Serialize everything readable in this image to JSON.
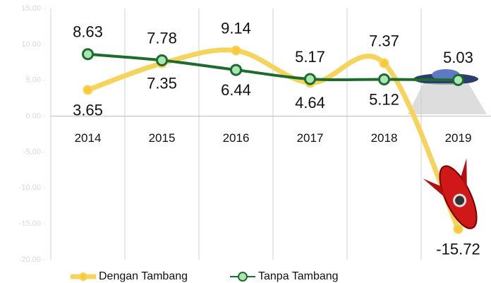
{
  "chart_data": {
    "type": "line",
    "categories": [
      "2014",
      "2015",
      "2016",
      "2017",
      "2018",
      "2019"
    ],
    "series": [
      {
        "name": "Dengan Tambang",
        "color": "#f5d45e",
        "values": [
          3.65,
          7.35,
          9.14,
          4.64,
          7.37,
          -15.72
        ]
      },
      {
        "name": "Tanpa Tambang",
        "color": "#1e6b2e",
        "values": [
          8.63,
          7.78,
          6.44,
          5.17,
          5.12,
          5.03
        ]
      }
    ],
    "ylim": [
      -20,
      15
    ],
    "yticks": [
      {
        "value": -20,
        "label": "-20.00"
      },
      {
        "value": -15,
        "label": "-15.00"
      },
      {
        "value": -10,
        "label": "-10.00"
      },
      {
        "value": -5,
        "label": "-5.00"
      },
      {
        "value": 0,
        "label": "0.00"
      },
      {
        "value": 5,
        "label": "5.00"
      },
      {
        "value": 10,
        "label": "10.00"
      },
      {
        "value": 15,
        "label": "15.00"
      }
    ],
    "grid": true
  }
}
